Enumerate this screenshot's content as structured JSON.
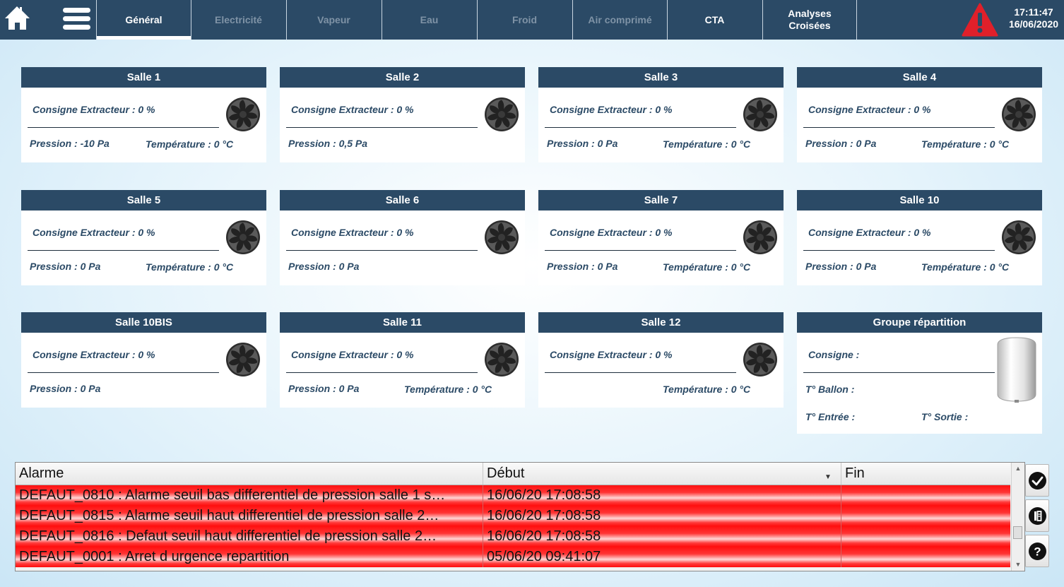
{
  "topbar": {
    "tabs": [
      {
        "label": "Général",
        "state": "active"
      },
      {
        "label": "Electricité",
        "state": "disabled"
      },
      {
        "label": "Vapeur",
        "state": "disabled"
      },
      {
        "label": "Eau",
        "state": "disabled"
      },
      {
        "label": "Froid",
        "state": "disabled"
      },
      {
        "label": "Air comprimé",
        "state": "disabled"
      },
      {
        "label": "CTA",
        "state": "enabled"
      },
      {
        "label": "Analyses Croisées",
        "state": "enabled"
      }
    ],
    "time": "17:11:47",
    "date": "16/06/2020",
    "colors": {
      "bar": "#2b4a66",
      "disabled_text": "#7f93a6",
      "alarm": "#e0202a"
    },
    "icons": [
      "home-icon",
      "hamburger-menu-icon",
      "alarm-warning-icon"
    ]
  },
  "rooms": [
    {
      "title": "Salle 1",
      "consigne": "Consigne Extracteur : 0 %",
      "pression": "Pression : -10 Pa",
      "temperature": "Température : 0 °C"
    },
    {
      "title": "Salle 2",
      "consigne": "Consigne Extracteur : 0 %",
      "pression": "Pression : 0,5 Pa",
      "temperature": ""
    },
    {
      "title": "Salle 3",
      "consigne": "Consigne Extracteur : 0 %",
      "pression": "Pression : 0 Pa",
      "temperature": "Température : 0 °C"
    },
    {
      "title": "Salle 4",
      "consigne": "Consigne Extracteur : 0 %",
      "pression": "Pression : 0 Pa",
      "temperature": "Température : 0 °C"
    },
    {
      "title": "Salle 5",
      "consigne": "Consigne Extracteur : 0 %",
      "pression": "Pression : 0 Pa",
      "temperature": "Température : 0 °C"
    },
    {
      "title": "Salle 6",
      "consigne": "Consigne Extracteur : 0 %",
      "pression": "Pression : 0 Pa",
      "temperature": ""
    },
    {
      "title": "Salle 7",
      "consigne": "Consigne Extracteur : 0 %",
      "pression": "Pression : 0 Pa",
      "temperature": "Température : 0 °C"
    },
    {
      "title": "Salle 10",
      "consigne": "Consigne Extracteur : 0 %",
      "pression": "Pression : 0 Pa",
      "temperature": "Température : 0 °C"
    },
    {
      "title": "Salle 10BIS",
      "consigne": "Consigne Extracteur : 0 %",
      "pression": "Pression : 0 Pa",
      "temperature": ""
    },
    {
      "title": "Salle 11",
      "consigne": "Consigne Extracteur : 0 %",
      "pression": "Pression : 0 Pa",
      "temperature": "Température : 0 °C"
    },
    {
      "title": "Salle 12",
      "consigne": "Consigne Extracteur : 0 %",
      "pression": "",
      "temperature": "Température : 0 °C"
    }
  ],
  "group": {
    "title": "Groupe répartition",
    "consigne": "Consigne :",
    "ballon": "T° Ballon :",
    "entree": "T° Entrée :",
    "sortie": "T° Sortie :"
  },
  "alarms": {
    "columns": {
      "alarme": "Alarme",
      "debut": "Début",
      "fin": "Fin"
    },
    "rows": [
      {
        "alarme": "DEFAUT_0810 : Alarme seuil bas differentiel de pression salle 1 s…",
        "debut": "16/06/20 17:08:58",
        "fin": ""
      },
      {
        "alarme": "DEFAUT_0815 : Alarme seuil haut differentiel de pression salle 2…",
        "debut": "16/06/20 17:08:58",
        "fin": ""
      },
      {
        "alarme": "DEFAUT_0816 : Defaut seuil haut differentiel de pression salle 2…",
        "debut": "16/06/20 17:08:58",
        "fin": ""
      },
      {
        "alarme": "DEFAUT_0001 : Arret d urgence repartition",
        "debut": "05/06/20 09:41:07",
        "fin": ""
      }
    ],
    "row_color": "#ff1a1a",
    "side_buttons": [
      "acknowledge-check-icon",
      "alarm-log-icon",
      "help-icon"
    ]
  }
}
